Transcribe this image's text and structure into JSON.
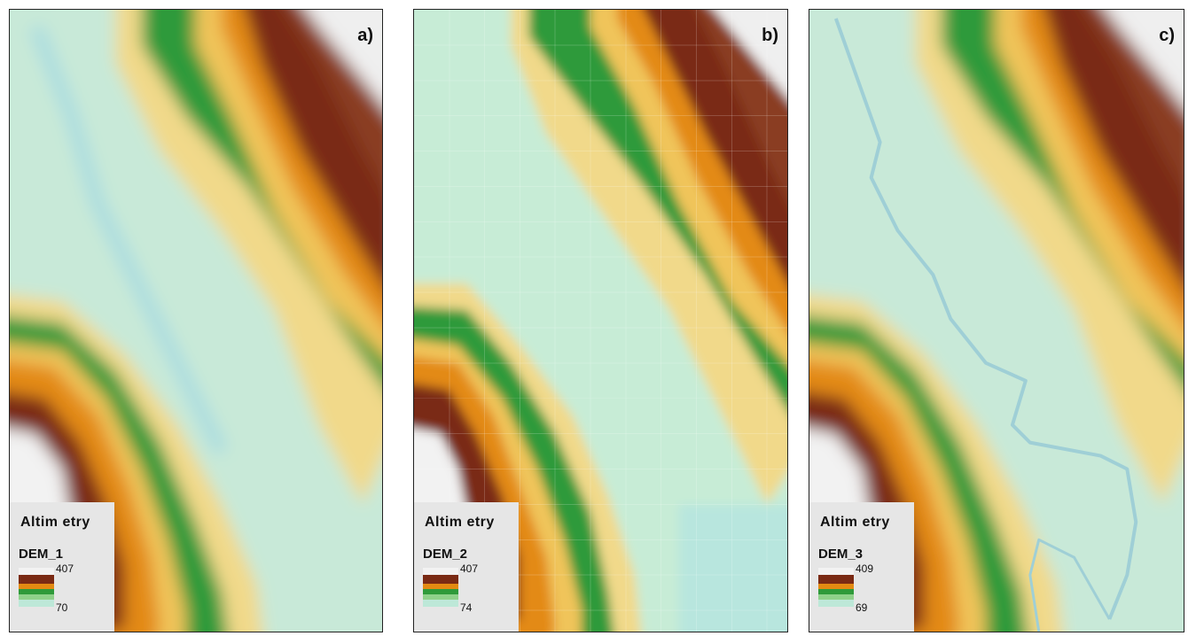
{
  "panels": [
    {
      "id": "a",
      "label": "a)",
      "legend_title": "Altim etry",
      "layer": "DEM_1",
      "max": "407",
      "min": "70"
    },
    {
      "id": "b",
      "label": "b)",
      "legend_title": "Altim etry",
      "layer": "DEM_2",
      "max": "407",
      "min": "74"
    },
    {
      "id": "c",
      "label": "c)",
      "legend_title": "Altim etry",
      "layer": "DEM_3",
      "max": "409",
      "min": "69"
    }
  ],
  "colors": {
    "low": "#bde8d8",
    "light_green": "#8fd18a",
    "green": "#2f9a3a",
    "yellow": "#f0d27a",
    "orange": "#e38a12",
    "brown": "#7a2a14",
    "high": "#f2f2f2"
  }
}
